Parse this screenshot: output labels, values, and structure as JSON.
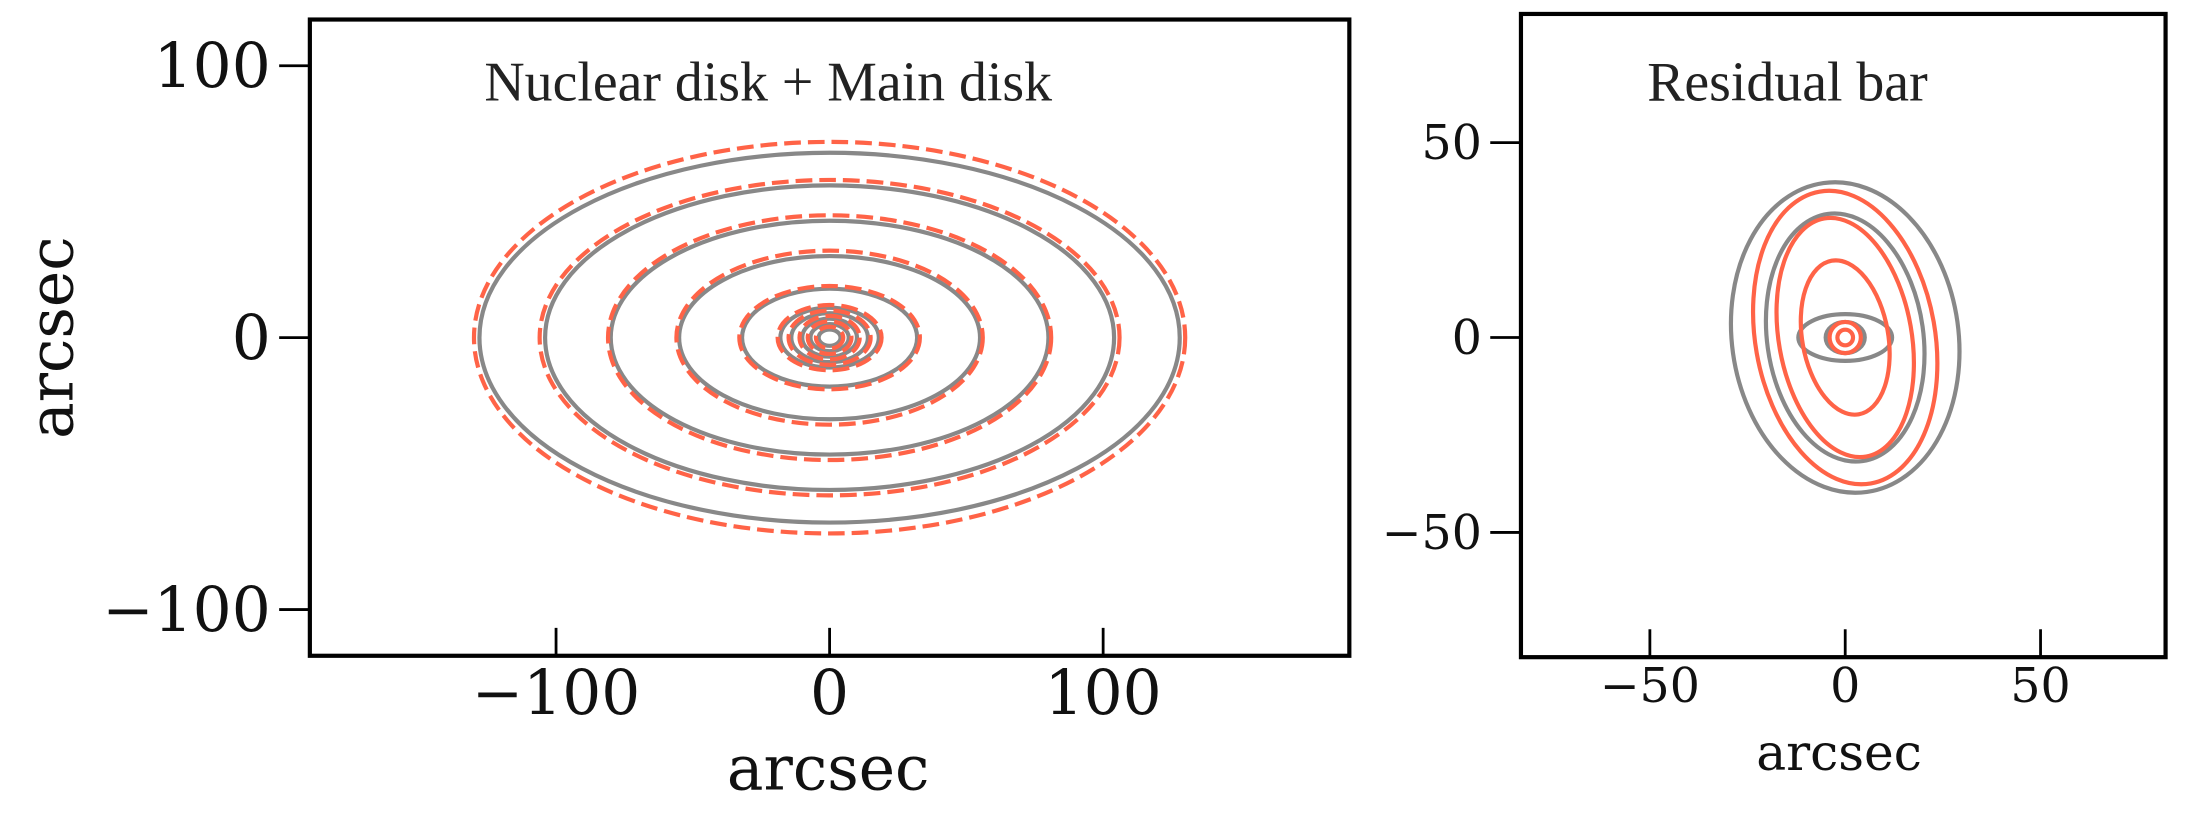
{
  "chart_data": [
    {
      "type": "contour",
      "title": "Nuclear disk + Main disk",
      "xlabel": "arcsec",
      "ylabel": "arcsec",
      "xlim": [
        -190,
        190
      ],
      "ylim": [
        -117,
        117
      ],
      "xticks": [
        {
          "value": -100,
          "label": "−100"
        },
        0,
        100
      ],
      "yticks": [
        {
          "value": -100,
          "label": "−100"
        },
        0,
        100
      ],
      "series": [
        {
          "color": "#888888",
          "line": "solid",
          "a": [
            128,
            104,
            80,
            55,
            32,
            18,
            14,
            10,
            7,
            4
          ],
          "b": [
            68,
            56,
            43,
            30,
            18,
            11,
            9,
            7,
            5,
            3
          ]
        },
        {
          "color": "#ff6347",
          "line": "dashed",
          "a": [
            130,
            106,
            81,
            56,
            33,
            19,
            15,
            11,
            8,
            5
          ],
          "b": [
            72,
            58,
            45,
            32,
            19,
            12,
            10,
            8,
            6,
            4
          ]
        }
      ]
    },
    {
      "type": "contour",
      "title": "Residual bar",
      "xlabel": "arcsec",
      "xlim": [
        -83,
        82
      ],
      "ylim": [
        -82,
        83
      ],
      "xticks": [
        {
          "value": -50,
          "label": "−50"
        },
        0,
        50
      ],
      "yticks": [
        {
          "value": -50,
          "label": "−50"
        },
        0,
        50
      ],
      "series": [
        {
          "color": "#888888",
          "line": "solid",
          "a": [
            29,
            20,
            12,
            5
          ],
          "b": [
            40,
            32,
            6,
            4
          ],
          "angle": [
            8,
            8,
            0,
            0
          ]
        },
        {
          "color": "#ff6347",
          "line": "solid",
          "a": [
            23,
            17,
            11,
            4,
            2
          ],
          "b": [
            38,
            31,
            20,
            4,
            2
          ],
          "angle": [
            10,
            10,
            10,
            0,
            0
          ]
        }
      ]
    }
  ]
}
